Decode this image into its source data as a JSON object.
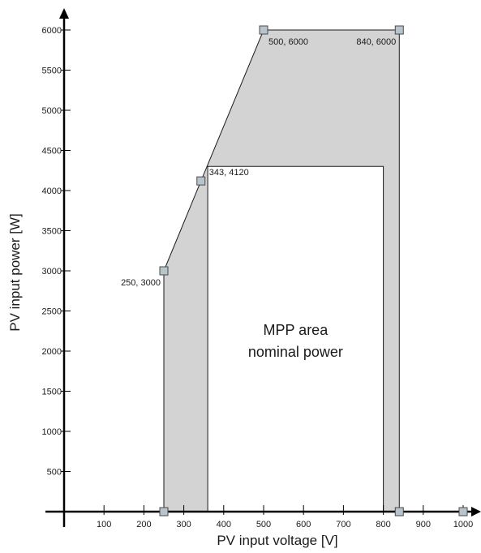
{
  "chart_data": {
    "type": "area",
    "xlabel": "PV input voltage [V]",
    "ylabel": "PV input power [W]",
    "x_ticks": [
      100,
      200,
      300,
      400,
      500,
      600,
      700,
      800,
      900,
      1000
    ],
    "y_ticks": [
      500,
      1000,
      1500,
      2000,
      2500,
      3000,
      3500,
      4000,
      4500,
      5000,
      5500,
      6000
    ],
    "x_range": [
      0,
      1000
    ],
    "y_range": [
      0,
      6000
    ],
    "grid": false,
    "outer_region": {
      "fill": "#d3d3d3",
      "points": [
        [
          250,
          0
        ],
        [
          250,
          3000
        ],
        [
          343,
          4120
        ],
        [
          500,
          6000
        ],
        [
          840,
          6000
        ],
        [
          840,
          0
        ]
      ]
    },
    "inner_region": {
      "fill": "#ffffff",
      "points": [
        [
          360,
          0
        ],
        [
          360,
          4300
        ],
        [
          800,
          4300
        ],
        [
          800,
          0
        ]
      ]
    },
    "markers": [
      {
        "x": 250,
        "y": 3000,
        "label": "250, 3000",
        "label_side": "below-left"
      },
      {
        "x": 343,
        "y": 4120,
        "label": "343, 4120",
        "label_side": "right"
      },
      {
        "x": 500,
        "y": 6000,
        "label": "500, 6000",
        "label_side": "below-right"
      },
      {
        "x": 840,
        "y": 6000,
        "label": "840, 6000",
        "label_side": "below-left"
      },
      {
        "x": 250,
        "y": 0,
        "label": ""
      },
      {
        "x": 840,
        "y": 0,
        "label": ""
      },
      {
        "x": 1000,
        "y": 0,
        "label": ""
      }
    ],
    "area_label": [
      "MPP area",
      "nominal power"
    ],
    "colors": {
      "axis": "#000000",
      "marker_fill": "#b8c4cc",
      "marker_stroke": "#4a4a4a",
      "region_fill": "#d3d3d3"
    }
  }
}
